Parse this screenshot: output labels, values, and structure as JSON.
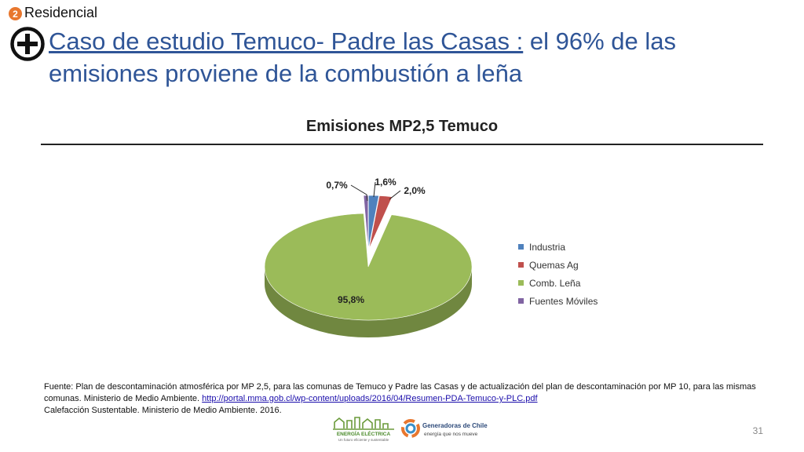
{
  "header": {
    "section_number": "2",
    "section_label": "Residencial",
    "title_underlined": "Caso de estudio Temuco- Padre las Casas :",
    "title_rest": " el 96% de las emisiones proviene de la combustión a leña"
  },
  "colors": {
    "title": "#2f5597",
    "badge": "#e8772e"
  },
  "chart_data": {
    "type": "pie",
    "title": "Emisiones MP2,5 Temuco",
    "categories": [
      "Industria",
      "Quemas Ag",
      "Comb. Leña",
      "Fuentes Móviles"
    ],
    "values": [
      1.6,
      2.0,
      95.8,
      0.7
    ],
    "labels": [
      "1,6%",
      "2,0%",
      "95,8%",
      "0,7%"
    ],
    "colors": [
      "#4f81bd",
      "#c0504d",
      "#9bbb59",
      "#8064a2"
    ],
    "style": "3d",
    "legend_position": "right"
  },
  "source": {
    "text": "Fuente: Plan de descontaminación atmosférica por MP 2,5, para las comunas de Temuco y Padre las Casas y de actualización del plan de descontaminación por MP 10, para las mismas comunas. Ministerio de Medio Ambiente. ",
    "link": "http://portal.mma.gob.cl/wp-content/uploads/2016/04/Resumen-PDA-Temuco-y-PLC.pdf",
    "line2": "Calefacción Sustentable. Ministerio de Medio Ambiente. 2016."
  },
  "logos": {
    "logo1_line1": "ENERGÍA ELÉCTRICA",
    "logo1_line2": "Un futuro eficiente y sustentable",
    "logo2_line1": "Generadoras de Chile",
    "logo2_line2": "energía que nos mueve"
  },
  "page_number": "31"
}
